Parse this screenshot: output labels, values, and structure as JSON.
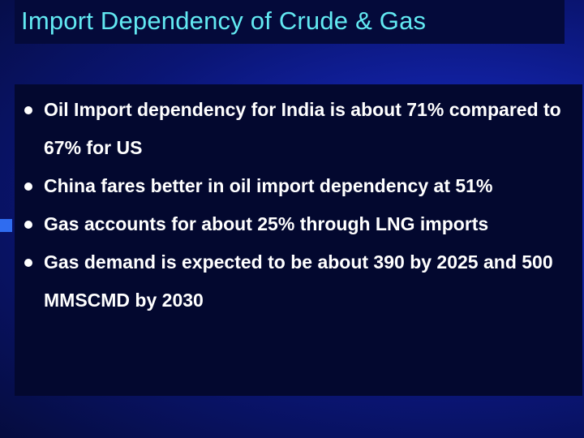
{
  "slide": {
    "title": "Import Dependency of Crude & Gas",
    "bullets": [
      {
        "text": "Oil Import dependency for India is about 71% compared to 67% for US"
      },
      {
        "text": "China fares better in oil import dependency at 51%"
      },
      {
        "text": "Gas accounts for about 25% through LNG imports"
      },
      {
        "text": "Gas demand is expected to be about 390 by 2025 and 500 MMSCMD by 2030"
      }
    ]
  },
  "colors": {
    "title": "#62e9f2",
    "body_text": "#ffffff",
    "background": "#1222a6",
    "panel": "#03082f",
    "accent": "#2f6cf0"
  }
}
